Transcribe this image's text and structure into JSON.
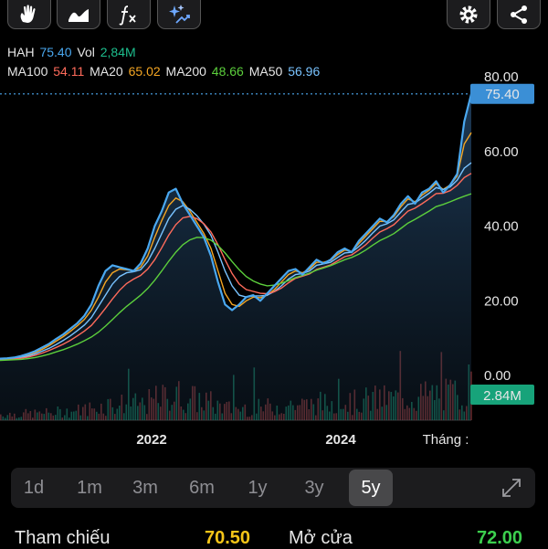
{
  "toolbar": {
    "left_icons": [
      "hand-draw-icon",
      "area-chart-icon",
      "function-fx-icon",
      "ai-sparkle-icon"
    ],
    "right_icons": [
      "gear-icon",
      "share-icon"
    ]
  },
  "header": {
    "ticker": "HAH",
    "price": "75.40",
    "vol_label": "Vol",
    "vol_value": "2,84M"
  },
  "indicators": [
    {
      "label": "MA100",
      "value": "54.11",
      "color": "#ff6b5b"
    },
    {
      "label": "MA20",
      "value": "65.02",
      "color": "#f5a623"
    },
    {
      "label": "MA200",
      "value": "48.66",
      "color": "#5ccf3c"
    },
    {
      "label": "MA50",
      "value": "56.96",
      "color": "#79c3ff"
    }
  ],
  "colors": {
    "price": "#4aa8f0",
    "vol_green": "#1dbf8e",
    "vol_red": "#e0504f",
    "price_badge": "#3b8fd6",
    "vol_badge": "#17a37a"
  },
  "price_badge": "75.40",
  "volume_badge": "2.84M",
  "chart_data": {
    "type": "line",
    "title": "",
    "y_ticks": [
      "80.00",
      "60.00",
      "40.00",
      "20.00",
      "0.00"
    ],
    "ylim": [
      0,
      80
    ],
    "x_ticks": [
      "2022",
      "2024",
      "Tháng :"
    ],
    "last_price": 75.4,
    "series": [
      {
        "name": "HAH",
        "values": [
          4.5,
          4.6,
          4.8,
          5.2,
          5.8,
          6.5,
          7.5,
          8.5,
          9.8,
          11,
          12.5,
          14,
          16,
          19,
          24,
          28,
          29.5,
          29,
          28.5,
          28,
          30,
          34,
          40,
          44,
          49,
          50,
          46,
          43,
          40,
          37,
          32,
          25,
          19,
          17.5,
          19,
          21,
          21.5,
          20,
          22,
          24,
          26,
          28,
          28.5,
          27,
          29,
          31,
          30,
          31,
          33,
          34,
          33,
          36,
          38,
          40,
          42,
          41,
          43,
          46,
          48,
          46,
          49,
          50,
          52,
          49,
          51,
          54,
          68,
          75.4
        ]
      },
      {
        "name": "MA20",
        "values": [
          4.4,
          4.5,
          4.6,
          5,
          5.5,
          6.2,
          7,
          8,
          9.2,
          10.4,
          11.8,
          13.3,
          15,
          17.5,
          21,
          25,
          27.5,
          28.5,
          28.3,
          28,
          29,
          32,
          37,
          41.5,
          45.5,
          47.5,
          46.5,
          44,
          41,
          38,
          34,
          28,
          22,
          19,
          18.5,
          20,
          21,
          20.8,
          21.5,
          23,
          25,
          27,
          28,
          27.5,
          28.5,
          30.3,
          30.3,
          30.8,
          32.4,
          33.6,
          33.2,
          35.3,
          37.3,
          39.3,
          41.3,
          41.2,
          42.6,
          45.2,
          47.3,
          46.5,
          48.3,
          49.6,
          51.4,
          49.8,
          51,
          53.4,
          62,
          65
        ]
      },
      {
        "name": "MA50",
        "values": [
          4.3,
          4.4,
          4.5,
          4.8,
          5.2,
          5.8,
          6.5,
          7.3,
          8.3,
          9.4,
          10.6,
          12,
          13.5,
          15.5,
          18.5,
          21.5,
          24.5,
          26.5,
          27.5,
          27.8,
          28.3,
          30.5,
          34,
          38,
          42,
          44.5,
          45.5,
          44.5,
          42.8,
          40.5,
          37.5,
          33,
          28,
          24,
          21.5,
          21,
          21.3,
          21.3,
          21.5,
          22.5,
          24,
          25.8,
          27,
          27.3,
          28,
          29.5,
          29.9,
          30.3,
          31.6,
          32.8,
          33,
          34.5,
          36.2,
          38.2,
          40,
          40.6,
          41.7,
          43.8,
          45.8,
          46.2,
          47.5,
          48.8,
          50.3,
          49.8,
          50.5,
          52.3,
          55.5,
          56.96
        ]
      },
      {
        "name": "MA100",
        "values": [
          4.2,
          4.3,
          4.4,
          4.6,
          4.9,
          5.4,
          6,
          6.7,
          7.5,
          8.4,
          9.4,
          10.6,
          11.9,
          13.4,
          15.6,
          18,
          20.5,
          22.8,
          24.6,
          25.8,
          26.8,
          28.5,
          31,
          34.2,
          37.6,
          40.4,
          42.2,
          42.6,
          42,
          40.6,
          38.4,
          35,
          31,
          27.3,
          24.5,
          23,
          22.5,
          22,
          21.9,
          22.4,
          23.4,
          24.8,
          26,
          26.6,
          27.2,
          28.4,
          29,
          29.6,
          30.7,
          31.8,
          32.3,
          33.6,
          35,
          36.8,
          38.4,
          39.3,
          40.4,
          42.2,
          44,
          44.8,
          46,
          47.3,
          48.7,
          48.8,
          49.5,
          50.9,
          53,
          54.11
        ]
      },
      {
        "name": "MA200",
        "values": [
          4,
          4.1,
          4.2,
          4.3,
          4.5,
          4.8,
          5.2,
          5.7,
          6.3,
          6.9,
          7.6,
          8.4,
          9.3,
          10.3,
          11.6,
          13.2,
          15,
          16.8,
          18.5,
          20,
          21.5,
          23.3,
          25.5,
          28,
          30.6,
          33,
          35,
          36.3,
          37,
          36.9,
          36.2,
          34.8,
          32.8,
          30.5,
          28.3,
          26.5,
          25.3,
          24.5,
          24,
          24.2,
          24.7,
          25.4,
          26.2,
          26.8,
          27.4,
          28.2,
          28.8,
          29.4,
          30.2,
          31,
          31.6,
          32.5,
          33.6,
          34.9,
          36.1,
          37,
          38,
          39.4,
          40.8,
          41.8,
          42.9,
          44,
          45.2,
          45.8,
          46.5,
          47.3,
          48,
          48.66
        ]
      }
    ],
    "volume_max_millions": 2.84
  },
  "range_tabs": [
    "1d",
    "1m",
    "3m",
    "6m",
    "1y",
    "3y",
    "5y"
  ],
  "range_active": "5y",
  "stats": {
    "ref_label": "Tham chiếu",
    "ref_value": "70.50",
    "open_label": "Mở cửa",
    "open_value": "72.00"
  }
}
